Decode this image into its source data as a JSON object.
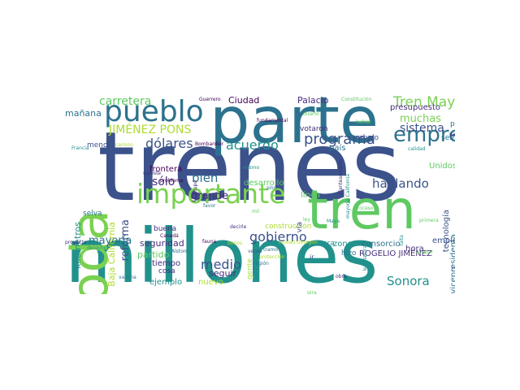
{
  "palette": {
    "dark_blue": "#3b528b",
    "teal": "#21918c",
    "green": "#5ec962",
    "yellow_green": "#addc30",
    "purple": "#472d7b",
    "dark_purple": "#440154",
    "mid_teal": "#2c728e",
    "light_green": "#7ad151"
  },
  "words": [
    {
      "text": "trenes",
      "color": "#3b528b"
    },
    {
      "text": "millones",
      "color": "#21918c"
    },
    {
      "text": "parte",
      "color": "#2c728e"
    },
    {
      "text": "toda",
      "color": "#7ad151"
    },
    {
      "text": "tren",
      "color": "#5ec962"
    },
    {
      "text": "pueblo",
      "color": "#2c728e"
    },
    {
      "text": "importante",
      "color": "#7ad151"
    },
    {
      "text": "empresa",
      "color": "#2c728e"
    },
    {
      "text": "programa",
      "color": "#3b528b"
    },
    {
      "text": "Tren Maya",
      "color": "#7ad151"
    },
    {
      "text": "gobierno",
      "color": "#3b528b"
    },
    {
      "text": "carretera",
      "color": "#5ec962"
    },
    {
      "text": "JIMÉNEZ PONS",
      "color": "#addc30"
    },
    {
      "text": "dólares",
      "color": "#3b528b"
    },
    {
      "text": "acuerdo",
      "color": "#21918c"
    },
    {
      "text": "hablando",
      "color": "#3b528b"
    },
    {
      "text": "medio",
      "color": "#3b528b"
    },
    {
      "text": "Sonora",
      "color": "#21918c"
    },
    {
      "text": "sistema",
      "color": "#3b528b"
    },
    {
      "text": "muchas",
      "color": "#7ad151"
    },
    {
      "text": "bien",
      "color": "#2c728e"
    },
    {
      "text": "grande",
      "color": "#472d7b"
    },
    {
      "text": "sólo",
      "color": "#472d7b"
    },
    {
      "text": "reforma",
      "color": "#3b528b"
    },
    {
      "text": "mayoría",
      "color": "#2c728e"
    },
    {
      "text": "Palacio",
      "color": "#472d7b"
    },
    {
      "text": "Ciudad",
      "color": "#440154"
    },
    {
      "text": "presupuesto",
      "color": "#472d7b"
    },
    {
      "text": "mañana",
      "color": "#2c728e"
    },
    {
      "text": "Baja California",
      "color": "#addc30"
    },
    {
      "text": "kilómetros",
      "color": "#21918c"
    },
    {
      "text": "ROGELIO JIMÉNEZ",
      "color": "#472d7b"
    },
    {
      "text": "vicepresidenta",
      "color": "#2c728e"
    },
    {
      "text": "tecnología",
      "color": "#3b528b"
    },
    {
      "text": "empleo",
      "color": "#3b528b"
    },
    {
      "text": "seguridad",
      "color": "#472d7b"
    },
    {
      "text": "partido",
      "color": "#5ec962"
    },
    {
      "text": "tiempo",
      "color": "#472d7b"
    },
    {
      "text": "ejemplo",
      "color": "#21918c"
    },
    {
      "text": "nuevo",
      "color": "#addc30"
    },
    {
      "text": "seguir",
      "color": "#472d7b"
    },
    {
      "text": "desarrollo",
      "color": "#5ec962"
    },
    {
      "text": "línea",
      "color": "#5ec962"
    },
    {
      "text": "zona",
      "color": "#21918c"
    },
    {
      "text": "consorcio",
      "color": "#2c728e"
    },
    {
      "text": "hora",
      "color": "#472d7b"
    },
    {
      "text": "frontera",
      "color": "#440154"
    },
    {
      "text": "trabajo",
      "color": "#3b528b"
    },
    {
      "text": "país",
      "color": "#2c728e"
    },
    {
      "text": "Unidos",
      "color": "#5ec962"
    },
    {
      "text": "votaron",
      "color": "#472d7b"
    },
    {
      "text": "semana",
      "color": "#2c728e"
    },
    {
      "text": "paso",
      "color": "#2c728e"
    },
    {
      "text": "menos",
      "color": "#3b528b"
    },
    {
      "text": "buena",
      "color": "#472d7b"
    },
    {
      "text": "cosa",
      "color": "#472d7b"
    },
    {
      "text": "hizo",
      "color": "#2c728e"
    },
    {
      "text": "manera",
      "color": "#21918c"
    },
    {
      "text": "construcción",
      "color": "#addc30"
    },
    {
      "text": "selva",
      "color": "#2c728e"
    },
    {
      "text": "gente",
      "color": "#addc30"
    },
    {
      "text": "vía",
      "color": "#3b528b"
    },
    {
      "text": "Guerrero",
      "color": "#440154"
    },
    {
      "text": "Constitución",
      "color": "#5ec962"
    },
    {
      "text": "fundamental",
      "color": "#440154"
    },
    {
      "text": "diseño",
      "color": "#5ec962"
    },
    {
      "text": "hablar",
      "color": "#5ec962"
    },
    {
      "text": "calidad",
      "color": "#21918c"
    },
    {
      "text": "Francia",
      "color": "#21918c"
    },
    {
      "text": "Bombardier",
      "color": "#440154"
    },
    {
      "text": "sureste",
      "color": "#472d7b"
    },
    {
      "text": "problema",
      "color": "#440154"
    },
    {
      "text": "grupo",
      "color": "#472d7b"
    },
    {
      "text": "favor",
      "color": "#2c728e"
    },
    {
      "text": "sino",
      "color": "#2c728e"
    },
    {
      "text": "planteamiento",
      "color": "#472d7b"
    },
    {
      "text": "mayoría California",
      "color": "#21918c"
    },
    {
      "text": "Maya",
      "color": "#21918c"
    },
    {
      "text": "proceso",
      "color": "#5ec962"
    },
    {
      "text": "primera",
      "color": "#5ec962"
    },
    {
      "text": "ayudar",
      "color": "#5ec962"
    },
    {
      "text": "video",
      "color": "#3b528b"
    },
    {
      "text": "región",
      "color": "#2c728e"
    },
    {
      "text": "Alstom",
      "color": "#2c728e"
    },
    {
      "text": "decirle",
      "color": "#472d7b"
    },
    {
      "text": "Canadá",
      "color": "#440154"
    },
    {
      "text": "proyecto",
      "color": "#472d7b"
    },
    {
      "text": "derecho",
      "color": "#21918c"
    },
    {
      "text": "vacuna",
      "color": "#2c728e"
    },
    {
      "text": "veces",
      "color": "#3b528b"
    },
    {
      "text": "obra",
      "color": "#472d7b"
    },
    {
      "text": "gira",
      "color": "#5ec962"
    },
    {
      "text": "fauna",
      "color": "#440154"
    },
    {
      "text": "tramo",
      "color": "#2c728e"
    },
    {
      "text": "legislatura",
      "color": "#21918c"
    },
    {
      "text": "falta",
      "color": "#21918c"
    },
    {
      "text": "yatermedia",
      "color": "#472d7b"
    },
    {
      "text": "ciudad Obregón",
      "color": "#addc30"
    },
    {
      "text": "protección",
      "color": "#addc30"
    },
    {
      "text": "ley",
      "color": "#5ec962"
    },
    {
      "text": "ir",
      "color": "#3b528b"
    },
    {
      "text": "mismo",
      "color": "#21918c"
    },
    {
      "text": "camino",
      "color": "#addc30"
    },
    {
      "text": "bonos",
      "color": "#addc30"
    },
    {
      "text": "mil",
      "color": "#5ec962"
    }
  ]
}
